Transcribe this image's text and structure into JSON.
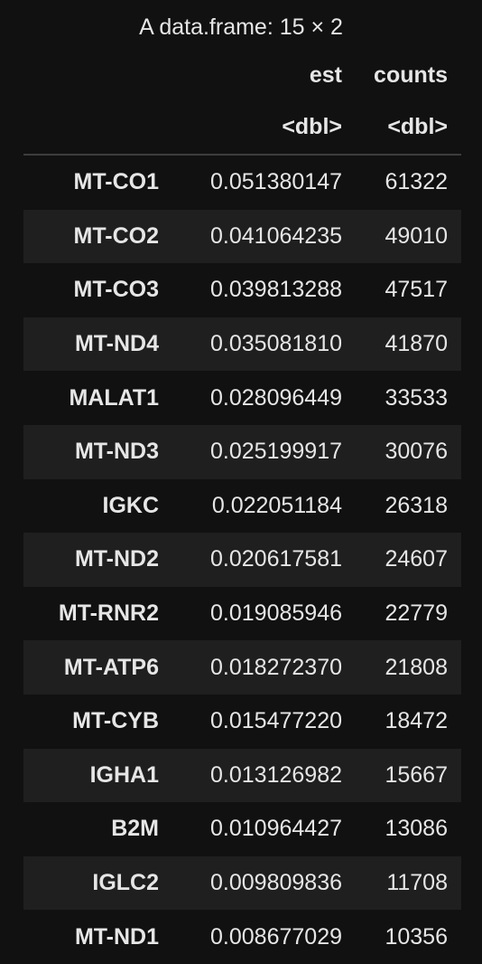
{
  "caption": "A data.frame: 15 × 2",
  "columns": [
    {
      "name": "est",
      "type": "<dbl>"
    },
    {
      "name": "counts",
      "type": "<dbl>"
    }
  ],
  "rows": [
    {
      "index": "MT-CO1",
      "est": "0.051380147",
      "counts": "61322"
    },
    {
      "index": "MT-CO2",
      "est": "0.041064235",
      "counts": "49010"
    },
    {
      "index": "MT-CO3",
      "est": "0.039813288",
      "counts": "47517"
    },
    {
      "index": "MT-ND4",
      "est": "0.035081810",
      "counts": "41870"
    },
    {
      "index": "MALAT1",
      "est": "0.028096449",
      "counts": "33533"
    },
    {
      "index": "MT-ND3",
      "est": "0.025199917",
      "counts": "30076"
    },
    {
      "index": "IGKC",
      "est": "0.022051184",
      "counts": "26318"
    },
    {
      "index": "MT-ND2",
      "est": "0.020617581",
      "counts": "24607"
    },
    {
      "index": "MT-RNR2",
      "est": "0.019085946",
      "counts": "22779"
    },
    {
      "index": "MT-ATP6",
      "est": "0.018272370",
      "counts": "21808"
    },
    {
      "index": "MT-CYB",
      "est": "0.015477220",
      "counts": "18472"
    },
    {
      "index": "IGHA1",
      "est": "0.013126982",
      "counts": "15667"
    },
    {
      "index": "B2M",
      "est": "0.010964427",
      "counts": "13086"
    },
    {
      "index": "IGLC2",
      "est": "0.009809836",
      "counts": "11708"
    },
    {
      "index": "MT-ND1",
      "est": "0.008677029",
      "counts": "10356"
    }
  ],
  "colors": {
    "background": "#111111",
    "stripe": "#1f1f1f",
    "text": "#e6e6e6",
    "rule": "#3d3d3d"
  }
}
